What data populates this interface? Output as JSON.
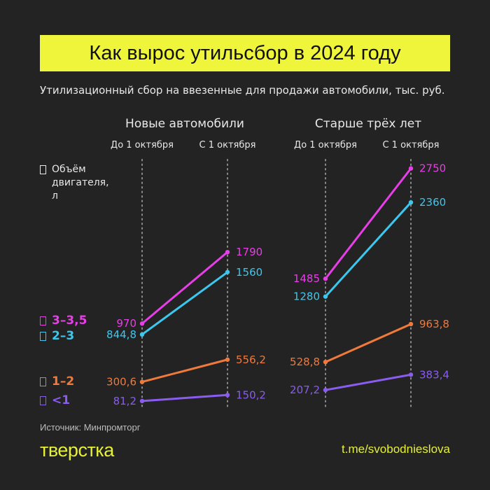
{
  "title": "Как вырос утильсбор в 2024 году",
  "subtitle": "Утилизационный сбор на ввезенные для продажи автомобили, тыс. руб.",
  "legend_title": "Объём двигателя, л",
  "source": "Источник: Минпромторг",
  "logo": "тверстка",
  "link": "t.me/svobodnieslova",
  "colors": {
    "background": "#232323",
    "title_bg": "#eef53b",
    "accent": "#e6f03a"
  },
  "chart_data": {
    "type": "line",
    "groups": [
      {
        "title": "Новые автомобили",
        "x": [
          "До 1 октября",
          "С 1 октября"
        ]
      },
      {
        "title": "Старше трёх лет",
        "x": [
          "До 1 октября",
          "С 1 октября"
        ]
      }
    ],
    "series": [
      {
        "name": "3–3,5",
        "color": "#e83ee8",
        "labels": [
          [
            "970",
            "1790"
          ],
          [
            "1485",
            "2750"
          ]
        ],
        "values": [
          [
            970,
            1790
          ],
          [
            1485,
            2750
          ]
        ]
      },
      {
        "name": "2–3",
        "color": "#3cc8ee",
        "labels": [
          [
            "844,8",
            "1560"
          ],
          [
            "1280",
            "2360"
          ]
        ],
        "values": [
          [
            844.8,
            1560
          ],
          [
            1280,
            2360
          ]
        ]
      },
      {
        "name": "1–2",
        "color": "#f07a3c",
        "labels": [
          [
            "300,6",
            "556,2"
          ],
          [
            "528,8",
            "963,8"
          ]
        ],
        "values": [
          [
            300.6,
            556.2
          ],
          [
            528.8,
            963.8
          ]
        ]
      },
      {
        "name": "<1",
        "color": "#8a5cf0",
        "labels": [
          [
            "81,2",
            "150,2"
          ],
          [
            "207,2",
            "383,4"
          ]
        ],
        "values": [
          [
            81.2,
            150.2
          ],
          [
            207.2,
            383.4
          ]
        ]
      }
    ],
    "unit": "тыс. руб.",
    "grid": false
  }
}
